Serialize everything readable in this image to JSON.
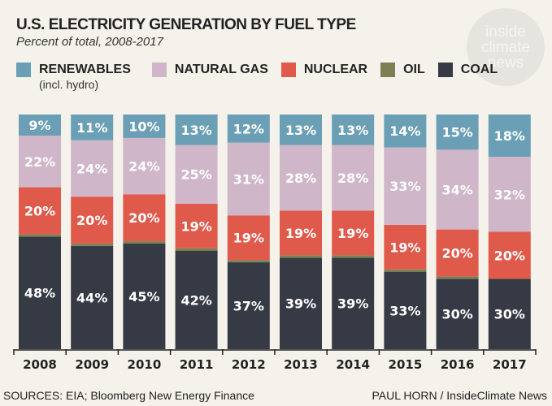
{
  "chart_data": {
    "type": "bar",
    "stacked": true,
    "title": "U.S. ELECTRICITY GENERATION BY FUEL TYPE",
    "subtitle": "Percent of total, 2008-2017",
    "categories": [
      "2008",
      "2009",
      "2010",
      "2011",
      "2012",
      "2013",
      "2014",
      "2015",
      "2016",
      "2017"
    ],
    "series": [
      {
        "name": "COAL",
        "color": "#363a45",
        "values": [
          48,
          44,
          45,
          42,
          37,
          39,
          39,
          33,
          30,
          30
        ]
      },
      {
        "name": "OIL",
        "color": "#7d8052",
        "values": [
          1,
          1,
          1,
          1,
          1,
          1,
          1,
          1,
          1,
          0
        ]
      },
      {
        "name": "NUCLEAR",
        "color": "#e05a4b",
        "values": [
          20,
          20,
          20,
          19,
          19,
          19,
          19,
          19,
          20,
          20
        ]
      },
      {
        "name": "NATURAL GAS",
        "color": "#cfb6c9",
        "values": [
          22,
          24,
          24,
          25,
          31,
          28,
          28,
          33,
          34,
          32
        ]
      },
      {
        "name": "RENEWABLES",
        "color": "#6a9fb5",
        "values": [
          9,
          11,
          10,
          13,
          12,
          13,
          13,
          14,
          15,
          18
        ]
      }
    ],
    "labeled_series": [
      "COAL",
      "NUCLEAR",
      "NATURAL GAS",
      "RENEWABLES"
    ],
    "ylim": [
      0,
      100
    ],
    "grid": false,
    "legend_placement": "top",
    "legend": [
      {
        "label": "RENEWABLES",
        "sub": "(incl. hydro)",
        "color": "#6a9fb5"
      },
      {
        "label": "NATURAL GAS",
        "color": "#cfb6c9"
      },
      {
        "label": "NUCLEAR",
        "color": "#e05a4b"
      },
      {
        "label": "OIL",
        "color": "#7d8052"
      },
      {
        "label": "COAL",
        "color": "#363a45"
      }
    ]
  },
  "logo": {
    "lines": [
      "inside",
      "climate",
      "news"
    ]
  },
  "footer": {
    "sources": "SOURCES: EIA; Bloomberg New Energy Finance",
    "credit": "PAUL HORN / InsideClimate News"
  }
}
